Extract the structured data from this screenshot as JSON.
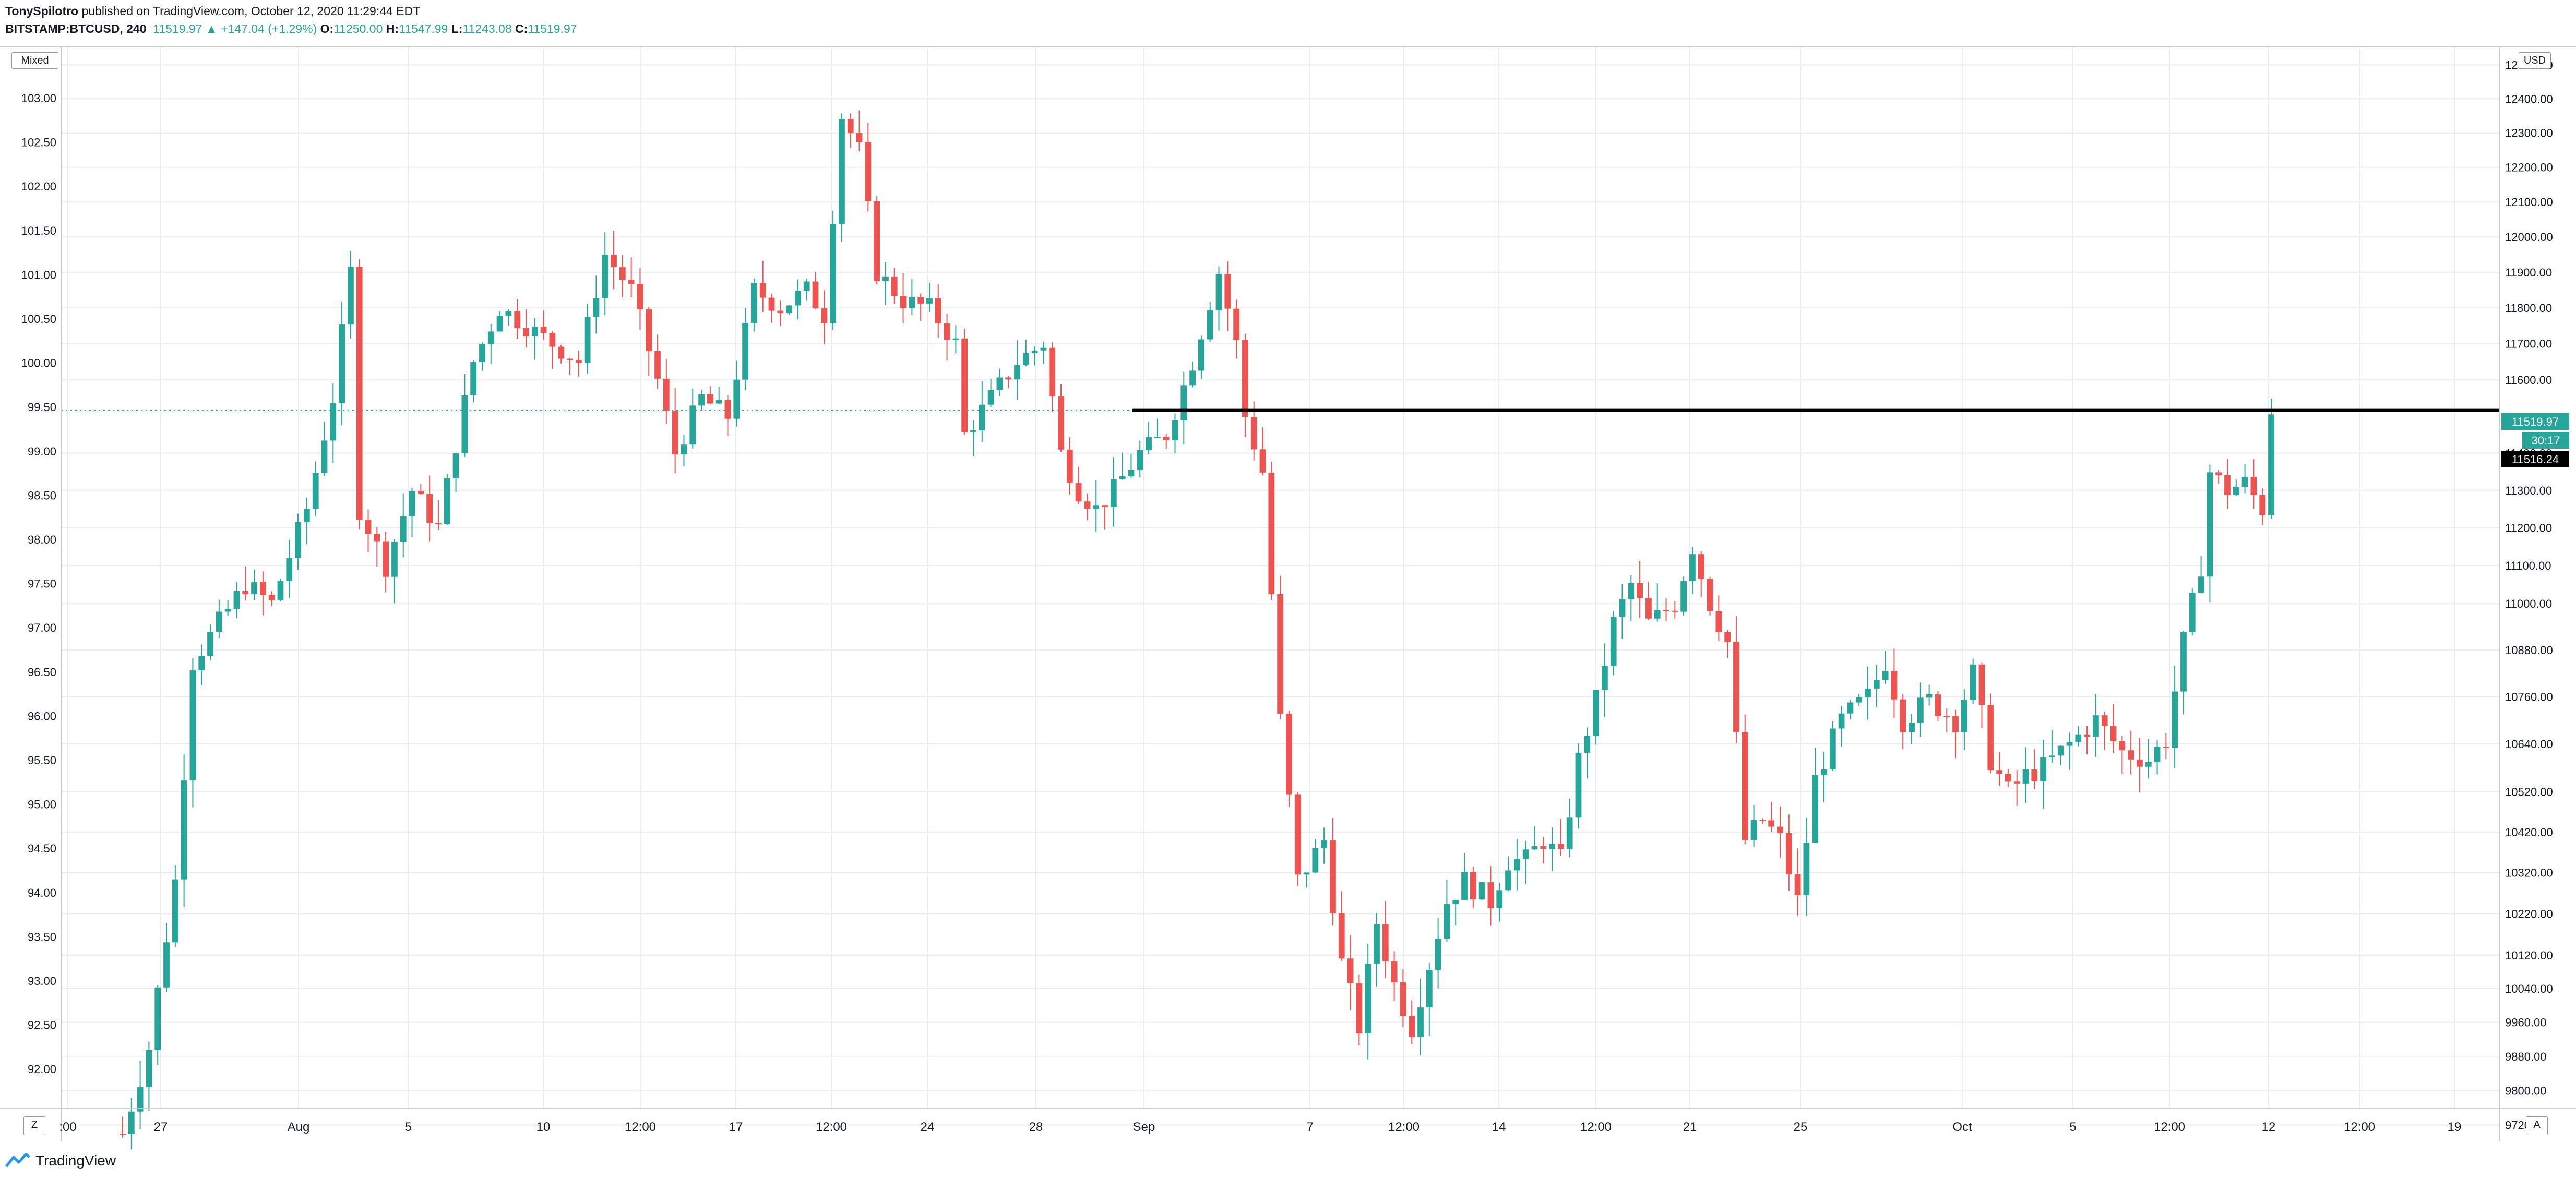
{
  "header": {
    "author": "TonySpilotro",
    "published_text": " published on TradingView.com, October 12, 2020 11:29:44 EDT",
    "symbol": "BITSTAMP:BTCUSD, 240",
    "last": "11519.97",
    "change": "+147.04 (+1.29%)",
    "o_label": "O:",
    "o_value": "11250.00",
    "h_label": "H:",
    "h_value": "11547.99",
    "l_label": "L:",
    "l_value": "11243.08",
    "c_label": "C:",
    "c_value": "11519.97"
  },
  "scale_buttons": {
    "mixed": "Mixed",
    "usd": "USD",
    "z": "Z",
    "a": "A"
  },
  "footer": {
    "brand": "TradingView"
  },
  "colors": {
    "up": "#26a69a",
    "down": "#ef5350",
    "grid": "#e9ecf2",
    "axis_text": "#131722",
    "resistance": "#000000"
  },
  "chart_data": {
    "type": "candlestick",
    "symbol": "BITSTAMP:BTCUSD",
    "timeframe": "240",
    "x_ticks": [
      ":00",
      "27",
      "Aug",
      "5",
      "10",
      "12:00",
      "17",
      "12:00",
      "24",
      "28",
      "Sep",
      "7",
      "12:00",
      "14",
      "12:00",
      "21",
      "25",
      "Oct",
      "5",
      "12:00",
      "12",
      "12:00",
      "19"
    ],
    "left_axis": {
      "scale": "percent-index",
      "ticks": [
        "103.00",
        "102.50",
        "102.00",
        "101.50",
        "101.00",
        "100.50",
        "100.00",
        "99.50",
        "99.00",
        "98.50",
        "98.00",
        "97.50",
        "97.00",
        "96.50",
        "96.00",
        "95.50",
        "95.00",
        "94.50",
        "94.00",
        "93.50",
        "93.00",
        "92.50",
        "92.00"
      ]
    },
    "right_axis": {
      "currency": "USD",
      "scale": "log",
      "ticks": [
        "12500.00",
        "12400.00",
        "12300.00",
        "12200.00",
        "12100.00",
        "12000.00",
        "11900.00",
        "11800.00",
        "11700.00",
        "11600.00",
        "11400.00",
        "11300.00",
        "11200.00",
        "11100.00",
        "11000.00",
        "10880.00",
        "10760.00",
        "10640.00",
        "10520.00",
        "10420.00",
        "10320.00",
        "10220.00",
        "10120.00",
        "10040.00",
        "9960.00",
        "9880.00",
        "9800.00",
        "9720.00"
      ]
    },
    "price_labels": {
      "last_price": "11519.97",
      "countdown": "30:17",
      "line_price": "11516.24"
    },
    "horizontal_line": {
      "price": 11516.24
    },
    "price_path": [
      [
        0,
        9700
      ],
      [
        3,
        9900
      ],
      [
        6,
        10300
      ],
      [
        8,
        10850
      ],
      [
        11,
        10950
      ],
      [
        14,
        11050
      ],
      [
        17,
        11000
      ],
      [
        21,
        11250
      ],
      [
        24,
        11550
      ],
      [
        26,
        11900
      ],
      [
        27,
        11250
      ],
      [
        30,
        11100
      ],
      [
        33,
        11300
      ],
      [
        36,
        11200
      ],
      [
        40,
        11650
      ],
      [
        43,
        11800
      ],
      [
        46,
        11750
      ],
      [
        49,
        11700
      ],
      [
        52,
        11650
      ],
      [
        55,
        11950
      ],
      [
        58,
        11850
      ],
      [
        61,
        11600
      ],
      [
        63,
        11400
      ],
      [
        66,
        11550
      ],
      [
        69,
        11500
      ],
      [
        72,
        11850
      ],
      [
        75,
        11800
      ],
      [
        78,
        11850
      ],
      [
        80,
        11780
      ],
      [
        82,
        12350
      ],
      [
        84,
        12250
      ],
      [
        86,
        11900
      ],
      [
        89,
        11820
      ],
      [
        92,
        11800
      ],
      [
        95,
        11700
      ],
      [
        96,
        11450
      ],
      [
        99,
        11550
      ],
      [
        102,
        11650
      ],
      [
        105,
        11700
      ],
      [
        107,
        11400
      ],
      [
        109,
        11300
      ],
      [
        111,
        11250
      ],
      [
        113,
        11300
      ],
      [
        116,
        11400
      ],
      [
        119,
        11450
      ],
      [
        122,
        11650
      ],
      [
        125,
        11900
      ],
      [
        127,
        11700
      ],
      [
        128,
        11500
      ],
      [
        130,
        11350
      ],
      [
        132,
        10700
      ],
      [
        134,
        10300
      ],
      [
        137,
        10400
      ],
      [
        139,
        10100
      ],
      [
        141,
        9950
      ],
      [
        143,
        10200
      ],
      [
        145,
        10050
      ],
      [
        147,
        9950
      ],
      [
        149,
        10100
      ],
      [
        151,
        10250
      ],
      [
        153,
        10300
      ],
      [
        156,
        10250
      ],
      [
        158,
        10350
      ],
      [
        160,
        10350
      ],
      [
        162,
        10400
      ],
      [
        164,
        10350
      ],
      [
        166,
        10600
      ],
      [
        168,
        10750
      ],
      [
        170,
        10950
      ],
      [
        172,
        11050
      ],
      [
        174,
        10950
      ],
      [
        177,
        11000
      ],
      [
        179,
        11150
      ],
      [
        181,
        11000
      ],
      [
        183,
        10900
      ],
      [
        185,
        10400
      ],
      [
        187,
        10450
      ],
      [
        189,
        10400
      ],
      [
        191,
        10250
      ],
      [
        193,
        10550
      ],
      [
        196,
        10700
      ],
      [
        199,
        10760
      ],
      [
        201,
        10850
      ],
      [
        203,
        10700
      ],
      [
        206,
        10750
      ],
      [
        209,
        10700
      ],
      [
        211,
        10820
      ],
      [
        213,
        10600
      ],
      [
        215,
        10520
      ],
      [
        217,
        10560
      ],
      [
        219,
        10580
      ],
      [
        222,
        10640
      ],
      [
        225,
        10700
      ],
      [
        228,
        10620
      ],
      [
        231,
        10600
      ],
      [
        233,
        10650
      ],
      [
        235,
        10900
      ],
      [
        237,
        11100
      ],
      [
        238,
        11350
      ],
      [
        240,
        11300
      ],
      [
        242,
        11320
      ],
      [
        244,
        11250
      ],
      [
        245,
        11520
      ]
    ]
  }
}
